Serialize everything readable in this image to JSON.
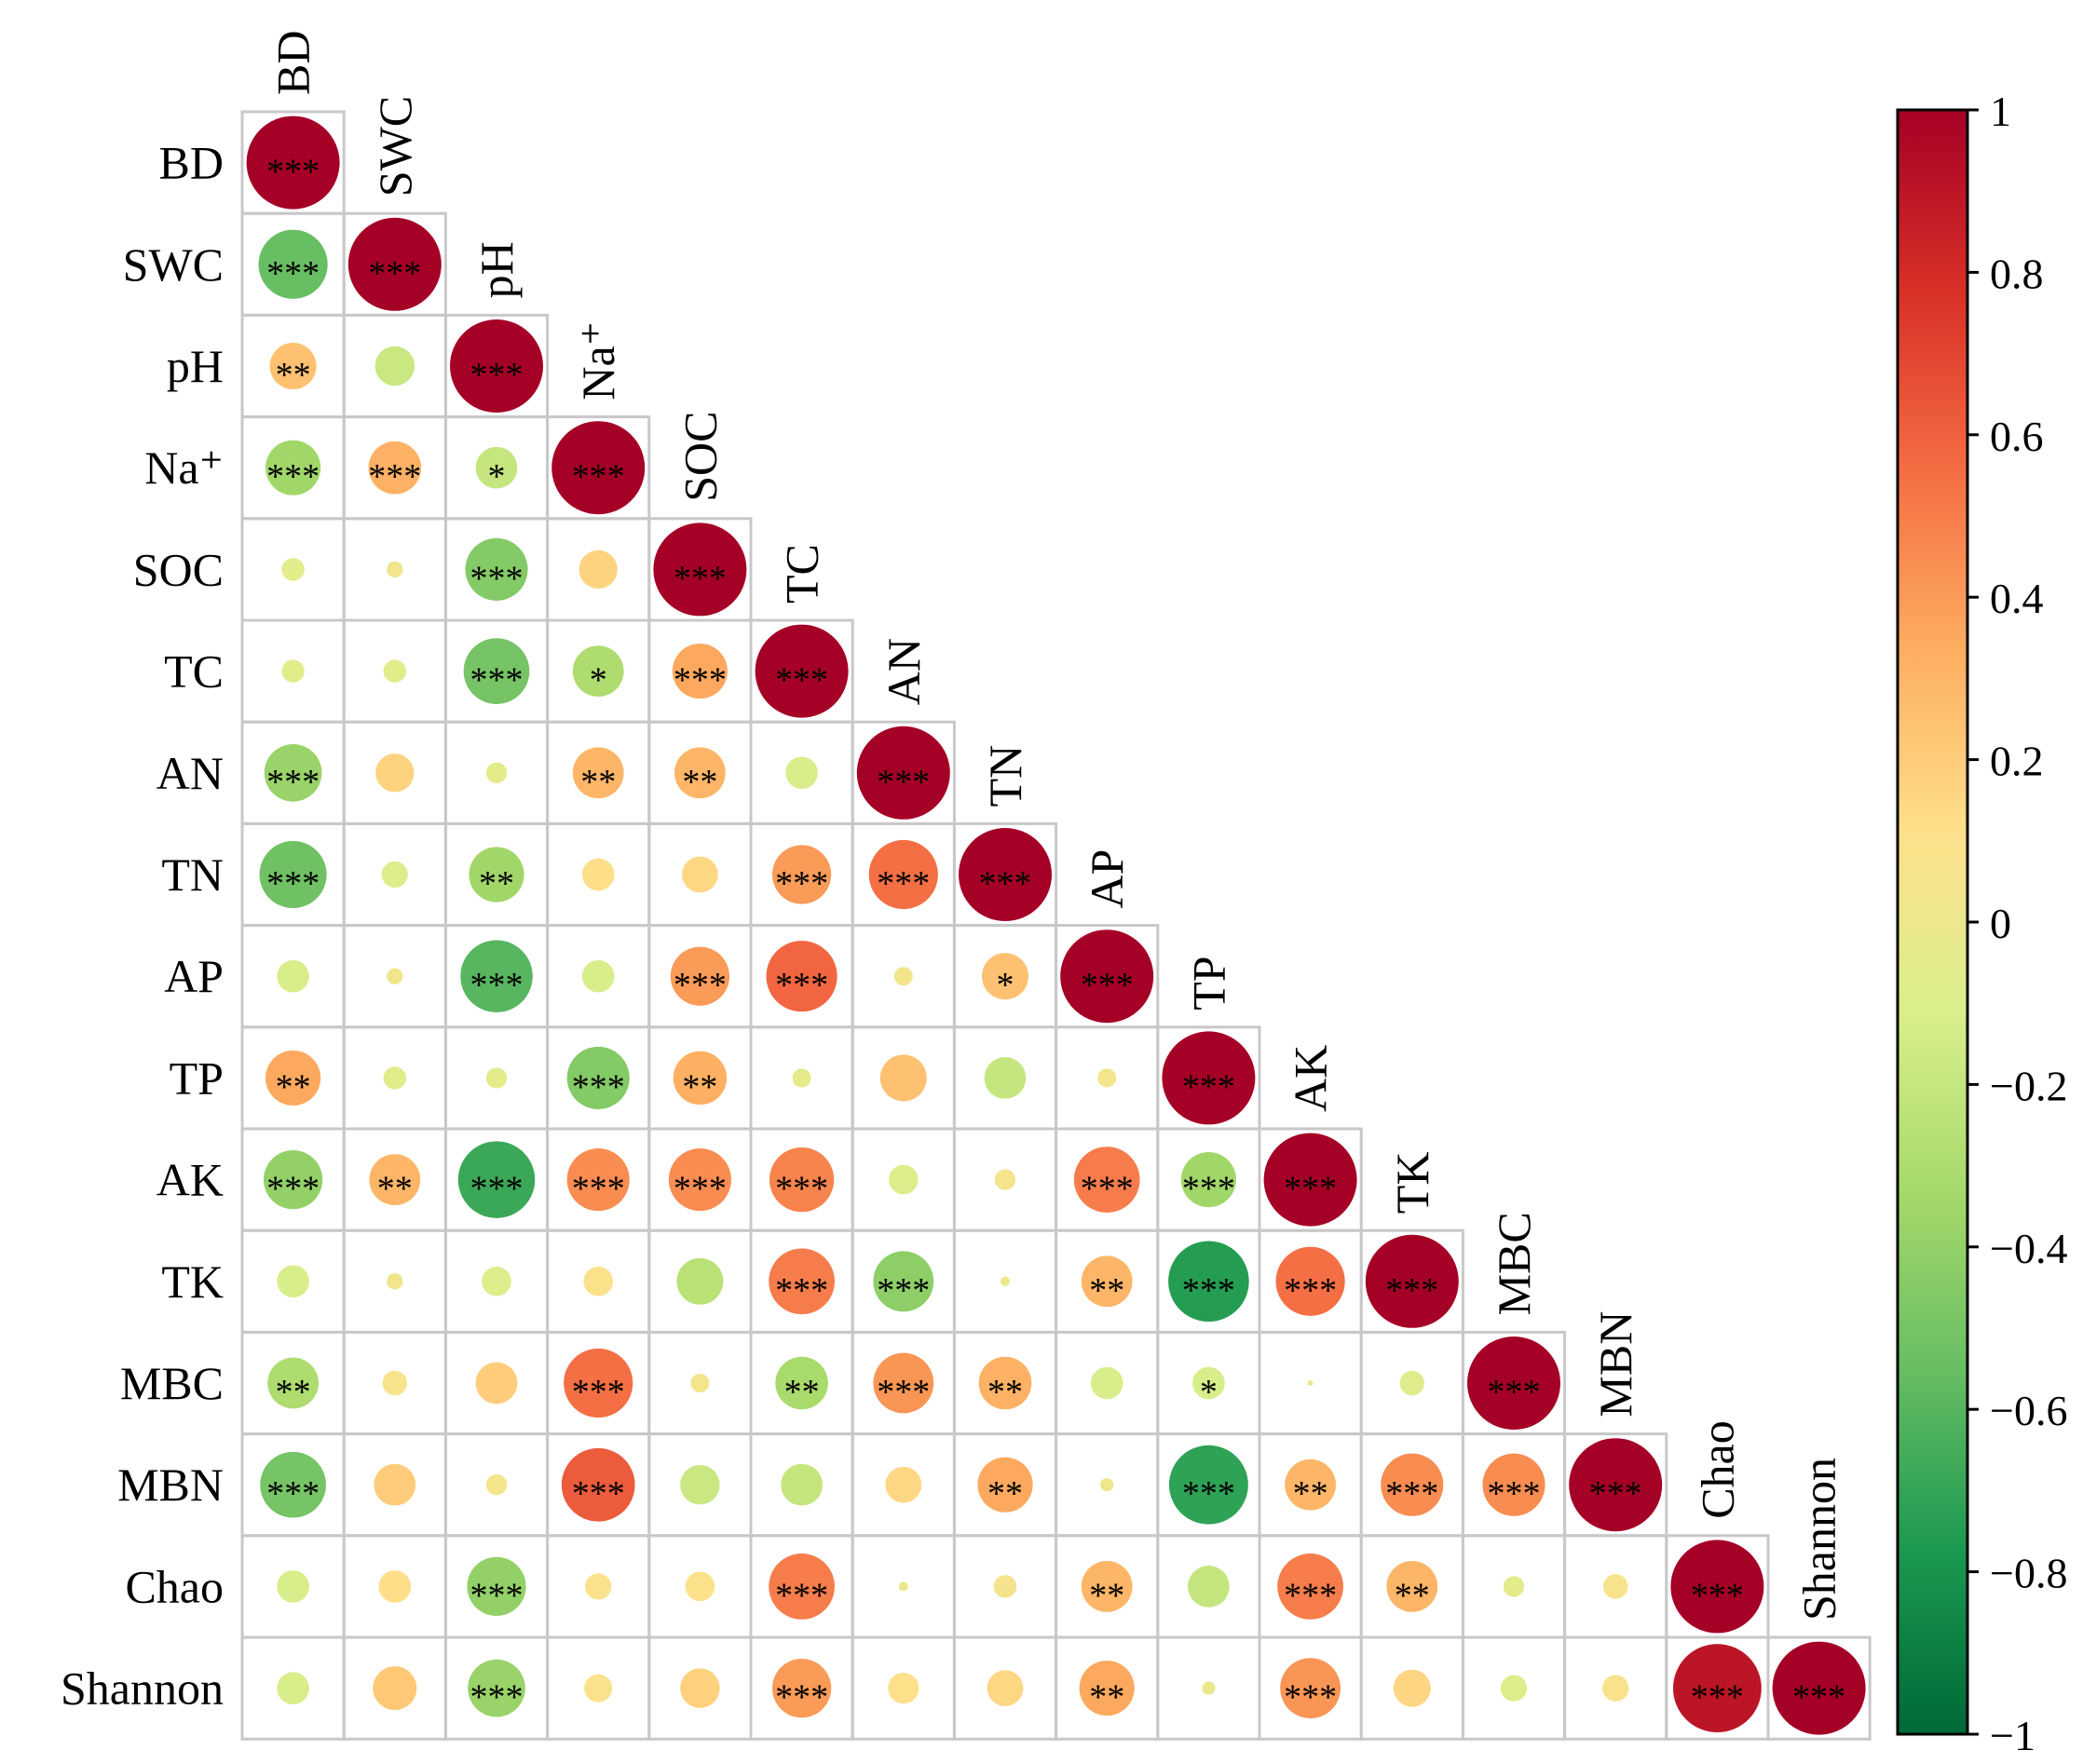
{
  "chart_data": {
    "type": "heatmap",
    "style": "lower-triangle correlation matrix, circles sized and colored by correlation coefficient",
    "variables": [
      "BD",
      "SWC",
      "pH",
      "Na+",
      "SOC",
      "TC",
      "AN",
      "TN",
      "AP",
      "TP",
      "AK",
      "TK",
      "MBC",
      "MBN",
      "Chao",
      "Shannon"
    ],
    "row_labels": [
      "BD",
      "SWC",
      "pH",
      "Na⁺",
      "SOC",
      "TC",
      "AN",
      "TN",
      "AP",
      "TP",
      "AK",
      "TK",
      "MBC",
      "MBN",
      "Chao",
      "Shannon"
    ],
    "diagonal_labels": [
      "BD",
      "SWC",
      "pH",
      "Na⁺",
      "SOC",
      "TC",
      "AN",
      "TN",
      "AP",
      "TP",
      "AK",
      "TK",
      "MBC",
      "MBN",
      "Chao",
      "Shannon"
    ],
    "matrix": [
      [
        1
      ],
      [
        -0.55,
        1
      ],
      [
        0.25,
        -0.18,
        1
      ],
      [
        -0.35,
        0.32,
        -0.2,
        1
      ],
      [
        -0.06,
        0.03,
        -0.45,
        0.17,
        1
      ],
      [
        -0.06,
        -0.06,
        -0.5,
        -0.3,
        0.35,
        1
      ],
      [
        -0.38,
        0.17,
        -0.05,
        0.3,
        0.3,
        -0.12,
        1
      ],
      [
        -0.52,
        -0.08,
        -0.35,
        0.12,
        0.15,
        0.4,
        0.55,
        1
      ],
      [
        -0.12,
        0.03,
        -0.6,
        -0.12,
        0.4,
        0.58,
        0.04,
        0.25,
        1
      ],
      [
        0.35,
        -0.06,
        -0.05,
        -0.45,
        0.33,
        -0.04,
        0.25,
        -0.2,
        0.04,
        1
      ],
      [
        -0.4,
        0.3,
        -0.68,
        0.45,
        0.45,
        0.48,
        -0.1,
        0.05,
        0.5,
        -0.35,
        1
      ],
      [
        -0.12,
        0.03,
        -0.1,
        0.1,
        -0.25,
        0.5,
        -0.42,
        0.01,
        0.3,
        -0.75,
        0.55,
        1
      ],
      [
        -0.3,
        0.07,
        0.2,
        0.55,
        0.04,
        -0.32,
        0.42,
        0.32,
        -0.12,
        -0.12,
        0.0,
        -0.07,
        1
      ],
      [
        -0.5,
        0.2,
        0.05,
        0.62,
        -0.18,
        -0.2,
        0.15,
        0.35,
        0.02,
        -0.72,
        0.3,
        0.45,
        0.45,
        1
      ],
      [
        -0.12,
        0.12,
        -0.4,
        0.08,
        0.1,
        0.5,
        0.01,
        0.06,
        0.3,
        -0.2,
        0.5,
        0.3,
        -0.05,
        0.07,
        1
      ],
      [
        -0.12,
        0.22,
        -0.38,
        0.09,
        0.18,
        0.4,
        0.11,
        0.15,
        0.35,
        -0.02,
        0.42,
        0.16,
        -0.08,
        0.08,
        0.9,
        1
      ]
    ],
    "significance": [
      [
        "***"
      ],
      [
        "***",
        "***"
      ],
      [
        "**",
        "",
        "***"
      ],
      [
        "***",
        "***",
        "*",
        "***"
      ],
      [
        "",
        "",
        "***",
        "",
        "***"
      ],
      [
        "",
        "",
        "***",
        "*",
        "***",
        "***"
      ],
      [
        "***",
        "",
        "",
        "**",
        "**",
        "",
        "***"
      ],
      [
        "***",
        "",
        "**",
        "",
        "",
        "***",
        "***",
        "***"
      ],
      [
        "",
        "",
        "***",
        "",
        "***",
        "***",
        "",
        "*",
        "***"
      ],
      [
        "**",
        "",
        "",
        "***",
        "**",
        "",
        "",
        "",
        "",
        "***"
      ],
      [
        "***",
        "**",
        "***",
        "***",
        "***",
        "***",
        "",
        "",
        "***",
        "***",
        "***"
      ],
      [
        "",
        "",
        "",
        "",
        "",
        "***",
        "***",
        "",
        "**",
        "***",
        "***",
        "***"
      ],
      [
        "**",
        "",
        "",
        "***",
        "",
        "**",
        "***",
        "**",
        "",
        "*",
        "",
        "",
        "***"
      ],
      [
        "***",
        "",
        "",
        "***",
        "",
        "",
        "",
        "**",
        "",
        "***",
        "**",
        "***",
        "***",
        "***"
      ],
      [
        "",
        "",
        "***",
        "",
        "",
        "***",
        "",
        "",
        "**",
        "",
        "***",
        "**",
        "",
        "",
        "***"
      ],
      [
        "",
        "",
        "***",
        "",
        "",
        "***",
        "",
        "",
        "**",
        "",
        "***",
        "",
        "",
        "",
        "***",
        "***"
      ]
    ],
    "colorbar": {
      "range": [
        -1,
        1
      ],
      "tick_labels": [
        "1",
        "0.8",
        "0.6",
        "0.4",
        "0.2",
        "0",
        "−0.2",
        "−0.4",
        "−0.6",
        "−0.8",
        "−1"
      ],
      "tick_values": [
        1,
        0.8,
        0.6,
        0.4,
        0.2,
        0,
        -0.2,
        -0.4,
        -0.6,
        -0.8,
        -1
      ],
      "colors": [
        "#006837",
        "#1a9850",
        "#66bd63",
        "#a6d96a",
        "#d9ef8b",
        "#fee08b",
        "#fdae61",
        "#f46d43",
        "#d73027",
        "#a50026"
      ]
    },
    "title": "",
    "xlabel": "",
    "ylabel": ""
  }
}
